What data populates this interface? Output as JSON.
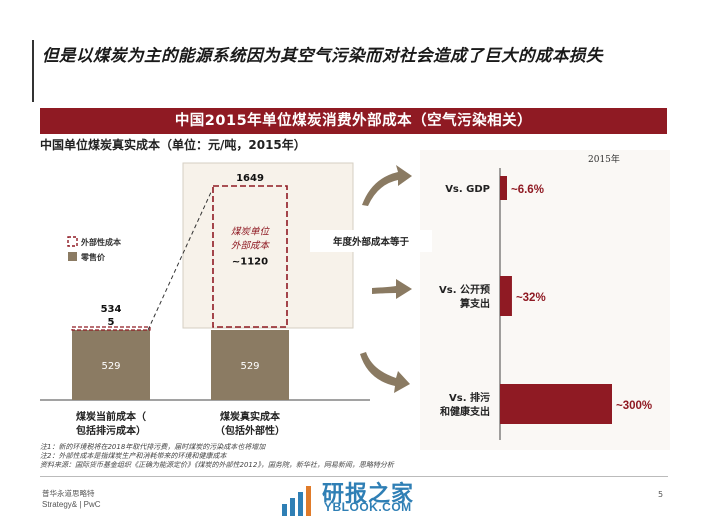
{
  "title": "但是以煤炭为主的能源系统因为其空气污染而对社会造成了巨大的成本损失",
  "banner": "中国2015年单位煤炭消费外部成本（空气污染相关）",
  "left_chart": {
    "subtitle": "中国单位煤炭真实成本（单位：元/吨，2015年）",
    "legend": {
      "external": "外部性成本",
      "retail": "零售价"
    },
    "colors": {
      "retail": "#8b7b63",
      "external": "#8f1a23"
    }
  },
  "connector_label": "年度外部成本等于",
  "right_chart": {
    "year_label": "2015年"
  },
  "footnotes": [
    "注1：新的环境税将在2018年取代排污费，届时煤炭的污染成本也将增加",
    "注2：外部性成本是指煤炭生产和消耗带来的环境和健康成本",
    "资料来源：国际货币基金组织《正确为能源定价》《煤炭的外部性2012》，国务院，新华社，网易新闻，思略特分析"
  ],
  "footer": {
    "brand_cn": "普华永道思略特",
    "brand_en": "Strategy& | PwC",
    "page": "5"
  },
  "watermark": {
    "text": "研报之家",
    "url": "YBLOOK.COM"
  },
  "chart_data": [
    {
      "type": "bar",
      "subtitle": "中国单位煤炭真实成本（单位：元/吨，2015年）",
      "categories": [
        "煤炭当前成本（包括排污成本）",
        "煤炭真实成本（包括外部性）"
      ],
      "series": [
        {
          "name": "零售价",
          "values": [
            529,
            529
          ]
        },
        {
          "name": "外部性成本",
          "values": [
            5,
            1120
          ]
        }
      ],
      "totals": [
        534,
        1649
      ],
      "annotations": [
        "煤炭单位外部成本",
        "~1120"
      ],
      "ylim": [
        0,
        1750
      ]
    },
    {
      "type": "bar",
      "orientation": "horizontal",
      "title": "2015年",
      "categories": [
        "Vs. GDP",
        "Vs. 公开预算支出",
        "Vs. 排污和健康支出"
      ],
      "values": [
        6.6,
        32,
        300
      ],
      "labels": [
        "~6.6%",
        "~32%",
        "~300%"
      ],
      "unit": "%"
    }
  ]
}
